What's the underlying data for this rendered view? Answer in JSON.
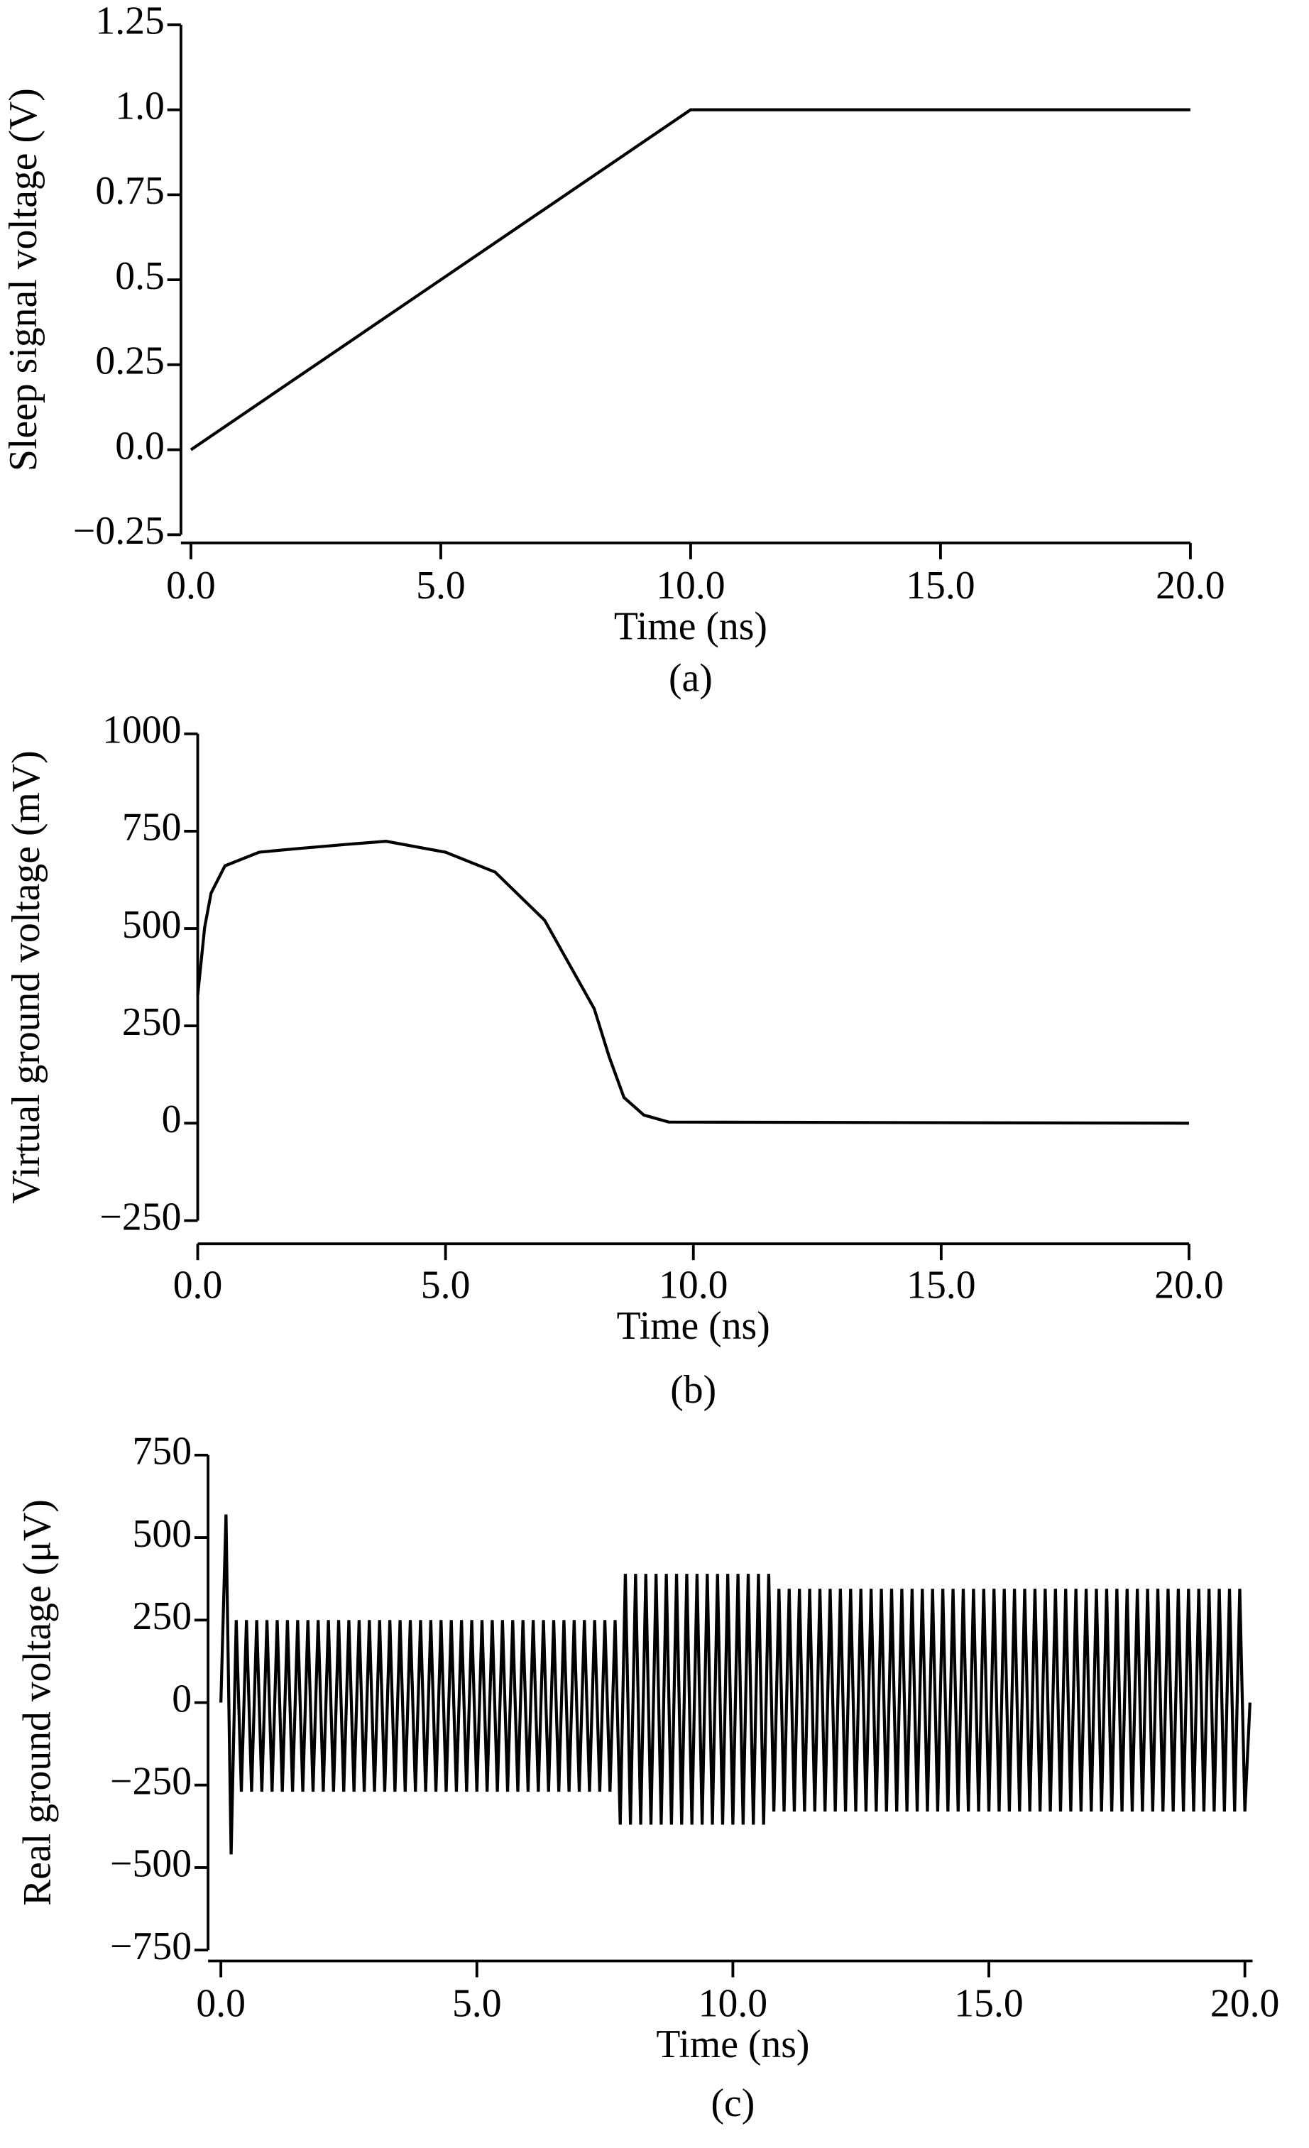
{
  "chart_data": [
    {
      "type": "line",
      "y_label": "Sleep signal voltage (V)",
      "x_label": "Time (ns)",
      "caption": "(a)",
      "x": [
        0,
        10,
        20
      ],
      "values": [
        0,
        1,
        1
      ],
      "color": "#000000",
      "xlim": [
        -0.2,
        20
      ],
      "ylim": [
        -0.25,
        1.25
      ],
      "xticks": [
        {
          "value": 0,
          "label": "0.0"
        },
        {
          "value": 5,
          "label": "5.0"
        },
        {
          "value": 10,
          "label": "10.0"
        },
        {
          "value": 15,
          "label": "15.0"
        },
        {
          "value": 20,
          "label": "20.0"
        }
      ],
      "yticks": [
        {
          "value": -0.25,
          "label": "−0.25"
        },
        {
          "value": 0,
          "label": "0.0"
        },
        0.25,
        0.5,
        0.75,
        {
          "value": 1,
          "label": "1.0"
        },
        1.25
      ]
    },
    {
      "type": "line",
      "y_label": "Virtual ground voltage (mV)",
      "x_label": "Time (ns)",
      "caption": "(b)",
      "x": [
        0,
        0.14,
        0.27,
        0.55,
        1.24,
        2,
        3,
        3.8,
        5,
        6,
        7,
        8,
        8.3,
        8.6,
        9,
        9.5,
        20
      ],
      "values": [
        329,
        503,
        591,
        661,
        696,
        705,
        716,
        724,
        696,
        645,
        521,
        294,
        171,
        66,
        21,
        3,
        0
      ],
      "color": "#000000",
      "xlim": [
        0,
        20
      ],
      "ylim": [
        -250,
        1000
      ],
      "xticks": [
        {
          "value": 0,
          "label": "0.0"
        },
        {
          "value": 5,
          "label": "5.0"
        },
        {
          "value": 10,
          "label": "10.0"
        },
        {
          "value": 15,
          "label": "15.0"
        },
        {
          "value": 20,
          "label": "20.0"
        }
      ],
      "yticks": [
        {
          "value": -250,
          "label": "−250"
        },
        0,
        250,
        500,
        750,
        1000
      ]
    },
    {
      "type": "line",
      "y_label": "Real ground voltage (μV)",
      "x_label": "Time (ns)",
      "caption": "(c)",
      "x": [
        0,
        0.1,
        0.2,
        0.3,
        0.4,
        0.5,
        0.6,
        0.7,
        0.8,
        0.9,
        1,
        1.1,
        1.2,
        1.3,
        1.4,
        1.5,
        1.6,
        1.7,
        1.8,
        1.9,
        2,
        2.1,
        2.2,
        2.3,
        2.4,
        2.5,
        2.6,
        2.7,
        2.8,
        2.9,
        3,
        3.1,
        3.2,
        3.3,
        3.4,
        3.5,
        3.6,
        3.7,
        3.8,
        3.9,
        4,
        4.1,
        4.2,
        4.3,
        4.4,
        4.5,
        4.6,
        4.7,
        4.8,
        4.9,
        5,
        5.1,
        5.2,
        5.3,
        5.4,
        5.5,
        5.6,
        5.7,
        5.8,
        5.9,
        6,
        6.1,
        6.2,
        6.3,
        6.4,
        6.5,
        6.6,
        6.7,
        6.8,
        6.9,
        7,
        7.1,
        7.2,
        7.3,
        7.4,
        7.5,
        7.6,
        7.7,
        7.8,
        7.9,
        8,
        8.1,
        8.2,
        8.3,
        8.4,
        8.5,
        8.6,
        8.7,
        8.8,
        8.9,
        9,
        9.1,
        9.2,
        9.3,
        9.4,
        9.5,
        9.6,
        9.7,
        9.8,
        9.9,
        10,
        10.1,
        10.2,
        10.3,
        10.4,
        10.5,
        10.6,
        10.7,
        10.8,
        10.9,
        11,
        11.1,
        11.2,
        11.3,
        11.4,
        11.5,
        11.6,
        11.7,
        11.8,
        11.9,
        12,
        12.1,
        12.2,
        12.3,
        12.4,
        12.5,
        12.6,
        12.7,
        12.8,
        12.9,
        13,
        13.1,
        13.2,
        13.3,
        13.4,
        13.5,
        13.6,
        13.7,
        13.8,
        13.9,
        14,
        14.1,
        14.2,
        14.3,
        14.4,
        14.5,
        14.6,
        14.7,
        14.8,
        14.9,
        15,
        15.1,
        15.2,
        15.3,
        15.4,
        15.5,
        15.6,
        15.7,
        15.8,
        15.9,
        16,
        16.1,
        16.2,
        16.3,
        16.4,
        16.5,
        16.6,
        16.7,
        16.8,
        16.9,
        17,
        17.1,
        17.2,
        17.3,
        17.4,
        17.5,
        17.6,
        17.7,
        17.8,
        17.9,
        18,
        18.1,
        18.2,
        18.3,
        18.4,
        18.5,
        18.6,
        18.7,
        18.8,
        18.9,
        19,
        19.1,
        19.2,
        19.3,
        19.4,
        19.5,
        19.6,
        19.7,
        19.8,
        19.9,
        20,
        20.1
      ],
      "values": [
        0,
        570,
        -460,
        250,
        -270,
        250,
        -270,
        250,
        -270,
        250,
        -270,
        250,
        -270,
        250,
        -270,
        250,
        -270,
        250,
        -270,
        250,
        -270,
        250,
        -270,
        250,
        -270,
        250,
        -270,
        250,
        -270,
        250,
        -270,
        250,
        -270,
        250,
        -270,
        250,
        -270,
        250,
        -270,
        250,
        -270,
        250,
        -270,
        250,
        -270,
        250,
        -270,
        250,
        -270,
        250,
        -270,
        250,
        -270,
        250,
        -270,
        250,
        -270,
        250,
        -270,
        250,
        -270,
        250,
        -270,
        250,
        -270,
        250,
        -270,
        250,
        -270,
        250,
        -270,
        250,
        -270,
        250,
        -270,
        250,
        -270,
        250,
        -370,
        390,
        -370,
        390,
        -370,
        390,
        -370,
        390,
        -370,
        390,
        -370,
        390,
        -370,
        390,
        -370,
        390,
        -370,
        390,
        -370,
        390,
        -370,
        390,
        -370,
        390,
        -370,
        390,
        -370,
        390,
        -370,
        390,
        -330,
        345,
        -330,
        345,
        -330,
        345,
        -330,
        345,
        -330,
        345,
        -330,
        345,
        -330,
        345,
        -330,
        345,
        -330,
        345,
        -330,
        345,
        -330,
        345,
        -330,
        345,
        -330,
        345,
        -330,
        345,
        -330,
        345,
        -330,
        345,
        -330,
        345,
        -330,
        345,
        -330,
        345,
        -330,
        345,
        -330,
        345,
        -330,
        345,
        -330,
        345,
        -330,
        345,
        -330,
        345,
        -330,
        345,
        -330,
        345,
        -330,
        345,
        -330,
        345,
        -330,
        345,
        -330,
        345,
        -330,
        345,
        -330,
        345,
        -330,
        345,
        -330,
        345,
        -330,
        345,
        -330,
        345,
        -330,
        345,
        -330,
        345,
        -330,
        345,
        -330,
        345,
        -330,
        345,
        -330,
        345,
        -330,
        345,
        -330,
        345,
        -330,
        345,
        -330,
        0
      ],
      "color": "#000000",
      "xlim": [
        -0.25,
        20.15
      ],
      "ylim": [
        -750,
        750
      ],
      "xticks": [
        {
          "value": 0,
          "label": "0.0"
        },
        {
          "value": 5,
          "label": "5.0"
        },
        {
          "value": 10,
          "label": "10.0"
        },
        {
          "value": 15,
          "label": "15.0"
        },
        {
          "value": 20,
          "label": "20.0"
        }
      ],
      "yticks": [
        {
          "value": -750,
          "label": "−750"
        },
        {
          "value": -500,
          "label": "−500"
        },
        {
          "value": -250,
          "label": "−250"
        },
        0,
        250,
        500,
        750
      ]
    }
  ]
}
